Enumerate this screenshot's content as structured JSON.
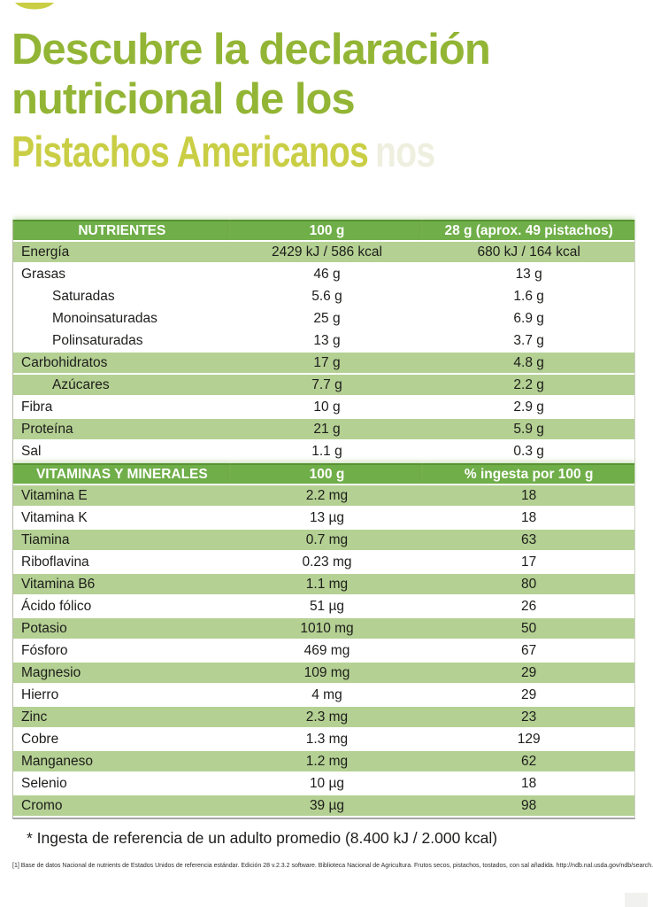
{
  "page": {
    "title_line1": "Descubre la declaración",
    "title_line2": "nutricional de los",
    "title_line3": "Pistachos Americanos",
    "ghost_text": "nos"
  },
  "colors": {
    "title_green": "#93b535",
    "brand_yellow": "#c9ce45",
    "header_green": "#6fae48",
    "row_green": "#b4d093",
    "text_dark": "#1d1d1b"
  },
  "nutrients_table": {
    "columns": [
      "NUTRIENTES",
      "100 g",
      "28 g (aprox. 49 pistachos)"
    ],
    "rows": [
      {
        "label": "Energía",
        "v1": "2429 kJ / 586 kcal",
        "v2": "680 kJ / 164 kcal",
        "shaded": true,
        "indent": false
      },
      {
        "label": "Grasas",
        "v1": "46 g",
        "v2": "13 g",
        "shaded": false,
        "indent": false
      },
      {
        "label": "Saturadas",
        "v1": "5.6 g",
        "v2": "1.6 g",
        "shaded": false,
        "indent": true
      },
      {
        "label": "Monoinsaturadas",
        "v1": "25 g",
        "v2": "6.9 g",
        "shaded": false,
        "indent": true
      },
      {
        "label": "Polinsaturadas",
        "v1": "13 g",
        "v2": "3.7 g",
        "shaded": false,
        "indent": true
      },
      {
        "label": "Carbohidratos",
        "v1": "17 g",
        "v2": "4.8 g",
        "shaded": true,
        "indent": false
      },
      {
        "label": "Azúcares",
        "v1": "7.7 g",
        "v2": "2.2 g",
        "shaded": true,
        "indent": true
      },
      {
        "label": "Fibra",
        "v1": "10 g",
        "v2": "2.9 g",
        "shaded": false,
        "indent": false
      },
      {
        "label": "Proteína",
        "v1": "21 g",
        "v2": "5.9 g",
        "shaded": true,
        "indent": false
      },
      {
        "label": "Sal",
        "v1": "1.1 g",
        "v2": "0.3 g",
        "shaded": false,
        "indent": false
      }
    ]
  },
  "vitamins_table": {
    "columns": [
      "VITAMINAS Y MINERALES",
      "100 g",
      "% ingesta por 100 g"
    ],
    "rows": [
      {
        "label": "Vitamina E",
        "v1": "2.2 mg",
        "v2": "18",
        "shaded": true,
        "indent": false
      },
      {
        "label": "Vitamina K",
        "v1": "13 µg",
        "v2": "18",
        "shaded": false,
        "indent": false
      },
      {
        "label": "Tiamina",
        "v1": "0.7 mg",
        "v2": "63",
        "shaded": true,
        "indent": false
      },
      {
        "label": "Riboflavina",
        "v1": "0.23 mg",
        "v2": "17",
        "shaded": false,
        "indent": false
      },
      {
        "label": "Vitamina B6",
        "v1": "1.1 mg",
        "v2": "80",
        "shaded": true,
        "indent": false
      },
      {
        "label": "Ácido fólico",
        "v1": "51 µg",
        "v2": "26",
        "shaded": false,
        "indent": false
      },
      {
        "label": "Potasio",
        "v1": "1010 mg",
        "v2": "50",
        "shaded": true,
        "indent": false
      },
      {
        "label": "Fósforo",
        "v1": "469 mg",
        "v2": "67",
        "shaded": false,
        "indent": false
      },
      {
        "label": "Magnesio",
        "v1": "109 mg",
        "v2": "29",
        "shaded": true,
        "indent": false
      },
      {
        "label": "Hierro",
        "v1": "4 mg",
        "v2": "29",
        "shaded": false,
        "indent": false
      },
      {
        "label": "Zinc",
        "v1": "2.3 mg",
        "v2": "23",
        "shaded": true,
        "indent": false
      },
      {
        "label": "Cobre",
        "v1": "1.3 mg",
        "v2": "129",
        "shaded": false,
        "indent": false
      },
      {
        "label": "Manganeso",
        "v1": "1.2 mg",
        "v2": "62",
        "shaded": true,
        "indent": false
      },
      {
        "label": "Selenio",
        "v1": "10 µg",
        "v2": "18",
        "shaded": false,
        "indent": false
      },
      {
        "label": "Cromo",
        "v1": "39 µg",
        "v2": "98",
        "shaded": true,
        "indent": false
      }
    ]
  },
  "footer": {
    "reference_note": "* Ingesta de referencia de un adulto promedio (8.400 kJ / 2.000 kcal)",
    "footnote": "[1] Base de datos Nacional de nutrients de Estados Unidos de referencia estándar. Edición 28 v.2.3.2 software. Biblioteca Nacional de Agricultura. Frutos secos, pistachos, tostados, con sal añadida. http://ndb.nal.usda.gov/ndb/search."
  }
}
